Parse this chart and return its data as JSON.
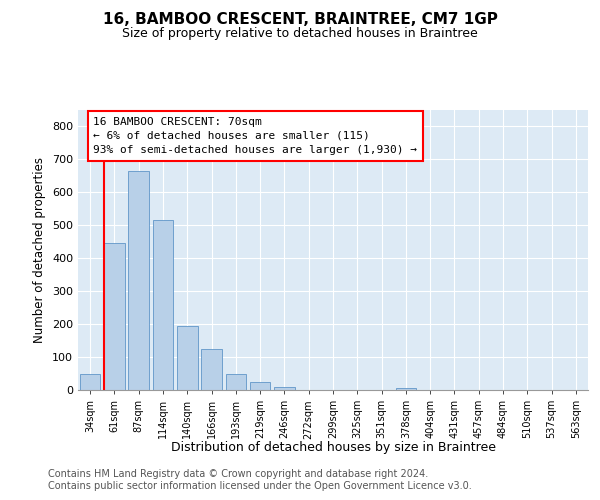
{
  "title": "16, BAMBOO CRESCENT, BRAINTREE, CM7 1GP",
  "subtitle": "Size of property relative to detached houses in Braintree",
  "xlabel": "Distribution of detached houses by size in Braintree",
  "ylabel": "Number of detached properties",
  "bin_labels": [
    "34sqm",
    "61sqm",
    "87sqm",
    "114sqm",
    "140sqm",
    "166sqm",
    "193sqm",
    "219sqm",
    "246sqm",
    "272sqm",
    "299sqm",
    "325sqm",
    "351sqm",
    "378sqm",
    "404sqm",
    "431sqm",
    "457sqm",
    "484sqm",
    "510sqm",
    "537sqm",
    "563sqm"
  ],
  "bar_heights": [
    50,
    445,
    665,
    515,
    195,
    125,
    50,
    25,
    10,
    0,
    0,
    0,
    0,
    5,
    0,
    0,
    0,
    0,
    0,
    0,
    0
  ],
  "bar_color": "#b8d0e8",
  "bar_edge_color": "#6096c8",
  "annotation_text": "16 BAMBOO CRESCENT: 70sqm\n← 6% of detached houses are smaller (115)\n93% of semi-detached houses are larger (1,930) →",
  "annotation_box_edge_color": "red",
  "property_line_color": "red",
  "property_line_x": 0.55,
  "ylim": [
    0,
    850
  ],
  "yticks": [
    0,
    100,
    200,
    300,
    400,
    500,
    600,
    700,
    800
  ],
  "bg_color": "#ddeaf5",
  "footer_line1": "Contains HM Land Registry data © Crown copyright and database right 2024.",
  "footer_line2": "Contains public sector information licensed under the Open Government Licence v3.0."
}
